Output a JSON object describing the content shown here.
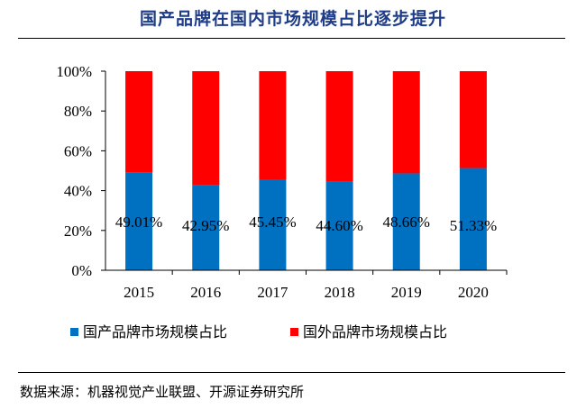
{
  "title": "国产品牌在国内市场规模占比逐步提升",
  "source": "数据来源：机器视觉产业联盟、开源证券研究所",
  "chart_data": {
    "type": "bar",
    "stacked": true,
    "categories": [
      "2015",
      "2016",
      "2017",
      "2018",
      "2019",
      "2020"
    ],
    "series": [
      {
        "name": "国产品牌市场规模占比",
        "color": "#0070C0",
        "values": [
          49.01,
          42.95,
          45.45,
          44.6,
          48.66,
          51.33
        ]
      },
      {
        "name": "国外品牌市场规模占比",
        "color": "#FF0000",
        "values": [
          50.99,
          57.05,
          54.55,
          55.4,
          51.34,
          48.67
        ]
      }
    ],
    "data_labels": [
      "49.01%",
      "42.95%",
      "45.45%",
      "44.60%",
      "48.66%",
      "51.33%"
    ],
    "yticks": [
      "0%",
      "20%",
      "40%",
      "60%",
      "80%",
      "100%"
    ],
    "ylim": [
      0,
      100
    ],
    "legend": "bottom",
    "grid": false
  }
}
